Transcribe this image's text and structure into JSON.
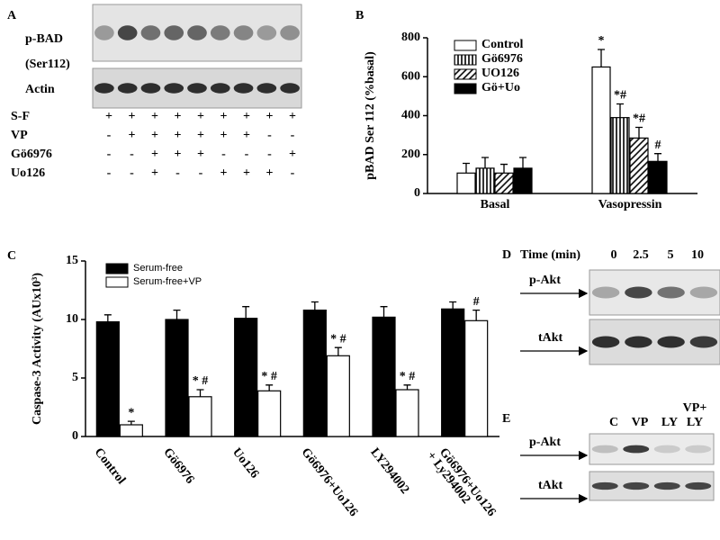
{
  "panel_a": {
    "letter": "A",
    "blot_labels": [
      "p-BAD",
      "(Ser112)",
      "Actin"
    ],
    "treatments": [
      {
        "label": "S-F",
        "signs": [
          "+",
          "+",
          "+",
          "+",
          "+",
          "+",
          "+",
          "+",
          "+"
        ]
      },
      {
        "label": "VP",
        "signs": [
          "-",
          "+",
          "+",
          "+",
          "+",
          "+",
          "+",
          "-",
          "-"
        ]
      },
      {
        "label": "Gö6976",
        "signs": [
          "-",
          "-",
          "+",
          "+",
          "+",
          "-",
          "-",
          "-",
          "+"
        ]
      },
      {
        "label": "Uo126",
        "signs": [
          "-",
          "-",
          "+",
          "-",
          "-",
          "+",
          "+",
          "+",
          "-"
        ]
      }
    ]
  },
  "chart_data": [
    {
      "type": "bar",
      "panel": "B",
      "ylabel": "pBAD Ser 112 (%basal)",
      "categories": [
        "Basal",
        "Vasopressin"
      ],
      "series": [
        {
          "name": "Control",
          "color": "#ffffff",
          "pattern": "none",
          "values": [
            105,
            650
          ],
          "errors": [
            50,
            90
          ],
          "annotations": [
            null,
            "*"
          ]
        },
        {
          "name": "Gö6976",
          "color": "#000000",
          "pattern": "vertical",
          "values": [
            130,
            390
          ],
          "errors": [
            55,
            70
          ],
          "annotations": [
            null,
            "*#"
          ]
        },
        {
          "name": "UO126",
          "color": "#000000",
          "pattern": "diagonal",
          "values": [
            105,
            285
          ],
          "errors": [
            45,
            55
          ],
          "annotations": [
            null,
            "*#"
          ]
        },
        {
          "name": "Gö+Uo",
          "color": "#000000",
          "pattern": "none",
          "values": [
            130,
            165
          ],
          "errors": [
            55,
            40
          ],
          "annotations": [
            null,
            "#"
          ]
        }
      ],
      "ylim": [
        0,
        800
      ],
      "yticks": [
        0,
        200,
        400,
        600,
        800
      ],
      "grid": false
    },
    {
      "type": "bar",
      "panel": "C",
      "ylabel": "Caspase-3 Activity (AUx10³)",
      "categories": [
        "Control",
        "Gö6976",
        "Uo126",
        "Gö6976+Uo126",
        "LY294002",
        [
          "Gö6976+Uo126",
          "+ Ly294002"
        ]
      ],
      "series": [
        {
          "name": "Serum-free",
          "color": "#000000",
          "pattern": "none",
          "values": [
            9.8,
            10.0,
            10.1,
            10.8,
            10.2,
            10.9
          ],
          "errors": [
            0.6,
            0.8,
            1.0,
            0.7,
            0.9,
            0.6
          ],
          "annotations": [
            null,
            null,
            null,
            null,
            null,
            null
          ]
        },
        {
          "name": "Serum-free+VP",
          "color": "#ffffff",
          "pattern": "none",
          "values": [
            1.0,
            3.4,
            3.9,
            6.9,
            4.0,
            9.9
          ],
          "errors": [
            0.3,
            0.6,
            0.5,
            0.7,
            0.4,
            0.9
          ],
          "annotations": [
            "*",
            "* #",
            "* #",
            "* #",
            "* #",
            "#"
          ]
        }
      ],
      "ylim": [
        0,
        15
      ],
      "yticks": [
        0,
        5,
        10,
        15
      ],
      "grid": false
    }
  ],
  "panel_d": {
    "letter": "D",
    "time_label": "Time (min)",
    "lanes": [
      "0",
      "2.5",
      "5",
      "10"
    ],
    "blot_labels": [
      "p-Akt",
      "tAkt"
    ]
  },
  "panel_e": {
    "letter": "E",
    "lanes": [
      [
        "C"
      ],
      [
        "VP"
      ],
      [
        "LY"
      ],
      [
        "VP+",
        "LY"
      ]
    ],
    "blot_labels": [
      "p-Akt",
      "tAkt"
    ]
  }
}
